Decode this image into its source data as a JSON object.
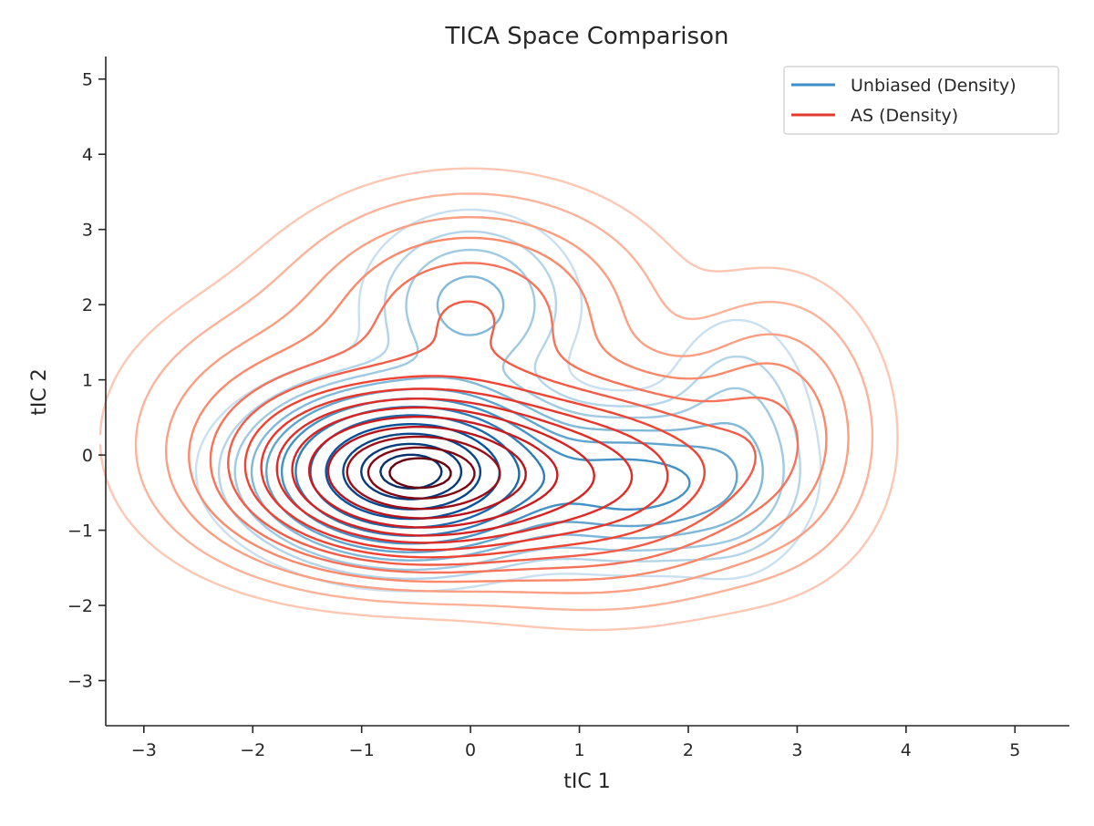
{
  "chart_data": {
    "type": "contour",
    "title": "TICA Space Comparison",
    "xlabel": "tIC 1",
    "ylabel": "tIC 2",
    "xlim": [
      -3.35,
      5.5
    ],
    "ylim": [
      -3.6,
      5.3
    ],
    "xticks": [
      -3,
      -2,
      -1,
      0,
      1,
      2,
      3,
      4,
      5
    ],
    "yticks": [
      -3,
      -2,
      -1,
      0,
      1,
      2,
      3,
      4,
      5
    ],
    "xtick_labels": [
      "−3",
      "−2",
      "−1",
      "0",
      "1",
      "2",
      "3",
      "4",
      "5"
    ],
    "ytick_labels": [
      "−3",
      "−2",
      "−1",
      "0",
      "1",
      "2",
      "3",
      "4",
      "5"
    ],
    "grid": false,
    "legend": {
      "position": "top-right",
      "entries": [
        {
          "label": "Unbiased (Density)",
          "color": "#3a8fc9"
        },
        {
          "label": "AS (Density)",
          "color": "#e23b2e"
        }
      ]
    },
    "series": [
      {
        "legend_label": "Unbiased (Density)",
        "colormap": "Blues",
        "components": [
          {
            "mx": -0.55,
            "my": -0.22,
            "sx": 0.68,
            "sy": 0.55,
            "w": 1.0
          },
          {
            "mx": 1.5,
            "my": -0.4,
            "sx": 0.62,
            "sy": 0.5,
            "w": 0.26
          },
          {
            "mx": 0.0,
            "my": 2.0,
            "sx": 0.5,
            "sy": 0.62,
            "w": 0.12
          },
          {
            "mx": 2.45,
            "my": 0.15,
            "sx": 0.38,
            "sy": 0.9,
            "w": 0.08
          }
        ],
        "levels": [
          0.015,
          0.035,
          0.06,
          0.1,
          0.15,
          0.22,
          0.3,
          0.4,
          0.52,
          0.66,
          0.8,
          0.92
        ]
      },
      {
        "legend_label": "AS (Density)",
        "colormap": "Reds",
        "components": [
          {
            "mx": -0.5,
            "my": -0.25,
            "sx": 0.78,
            "sy": 0.6,
            "w": 1.0
          },
          {
            "mx": 1.2,
            "my": -0.3,
            "sx": 0.85,
            "sy": 0.75,
            "w": 0.32
          },
          {
            "mx": 0.0,
            "my": 1.9,
            "sx": 0.85,
            "sy": 0.8,
            "w": 0.15
          },
          {
            "mx": 2.8,
            "my": 0.4,
            "sx": 0.5,
            "sy": 0.95,
            "w": 0.09
          },
          {
            "mx": -1.6,
            "my": 0.3,
            "sx": 0.8,
            "sy": 0.9,
            "w": 0.1
          }
        ],
        "levels": [
          0.008,
          0.02,
          0.04,
          0.065,
          0.1,
          0.14,
          0.19,
          0.25,
          0.32,
          0.4,
          0.5,
          0.62,
          0.74,
          0.86,
          0.95
        ]
      }
    ]
  }
}
